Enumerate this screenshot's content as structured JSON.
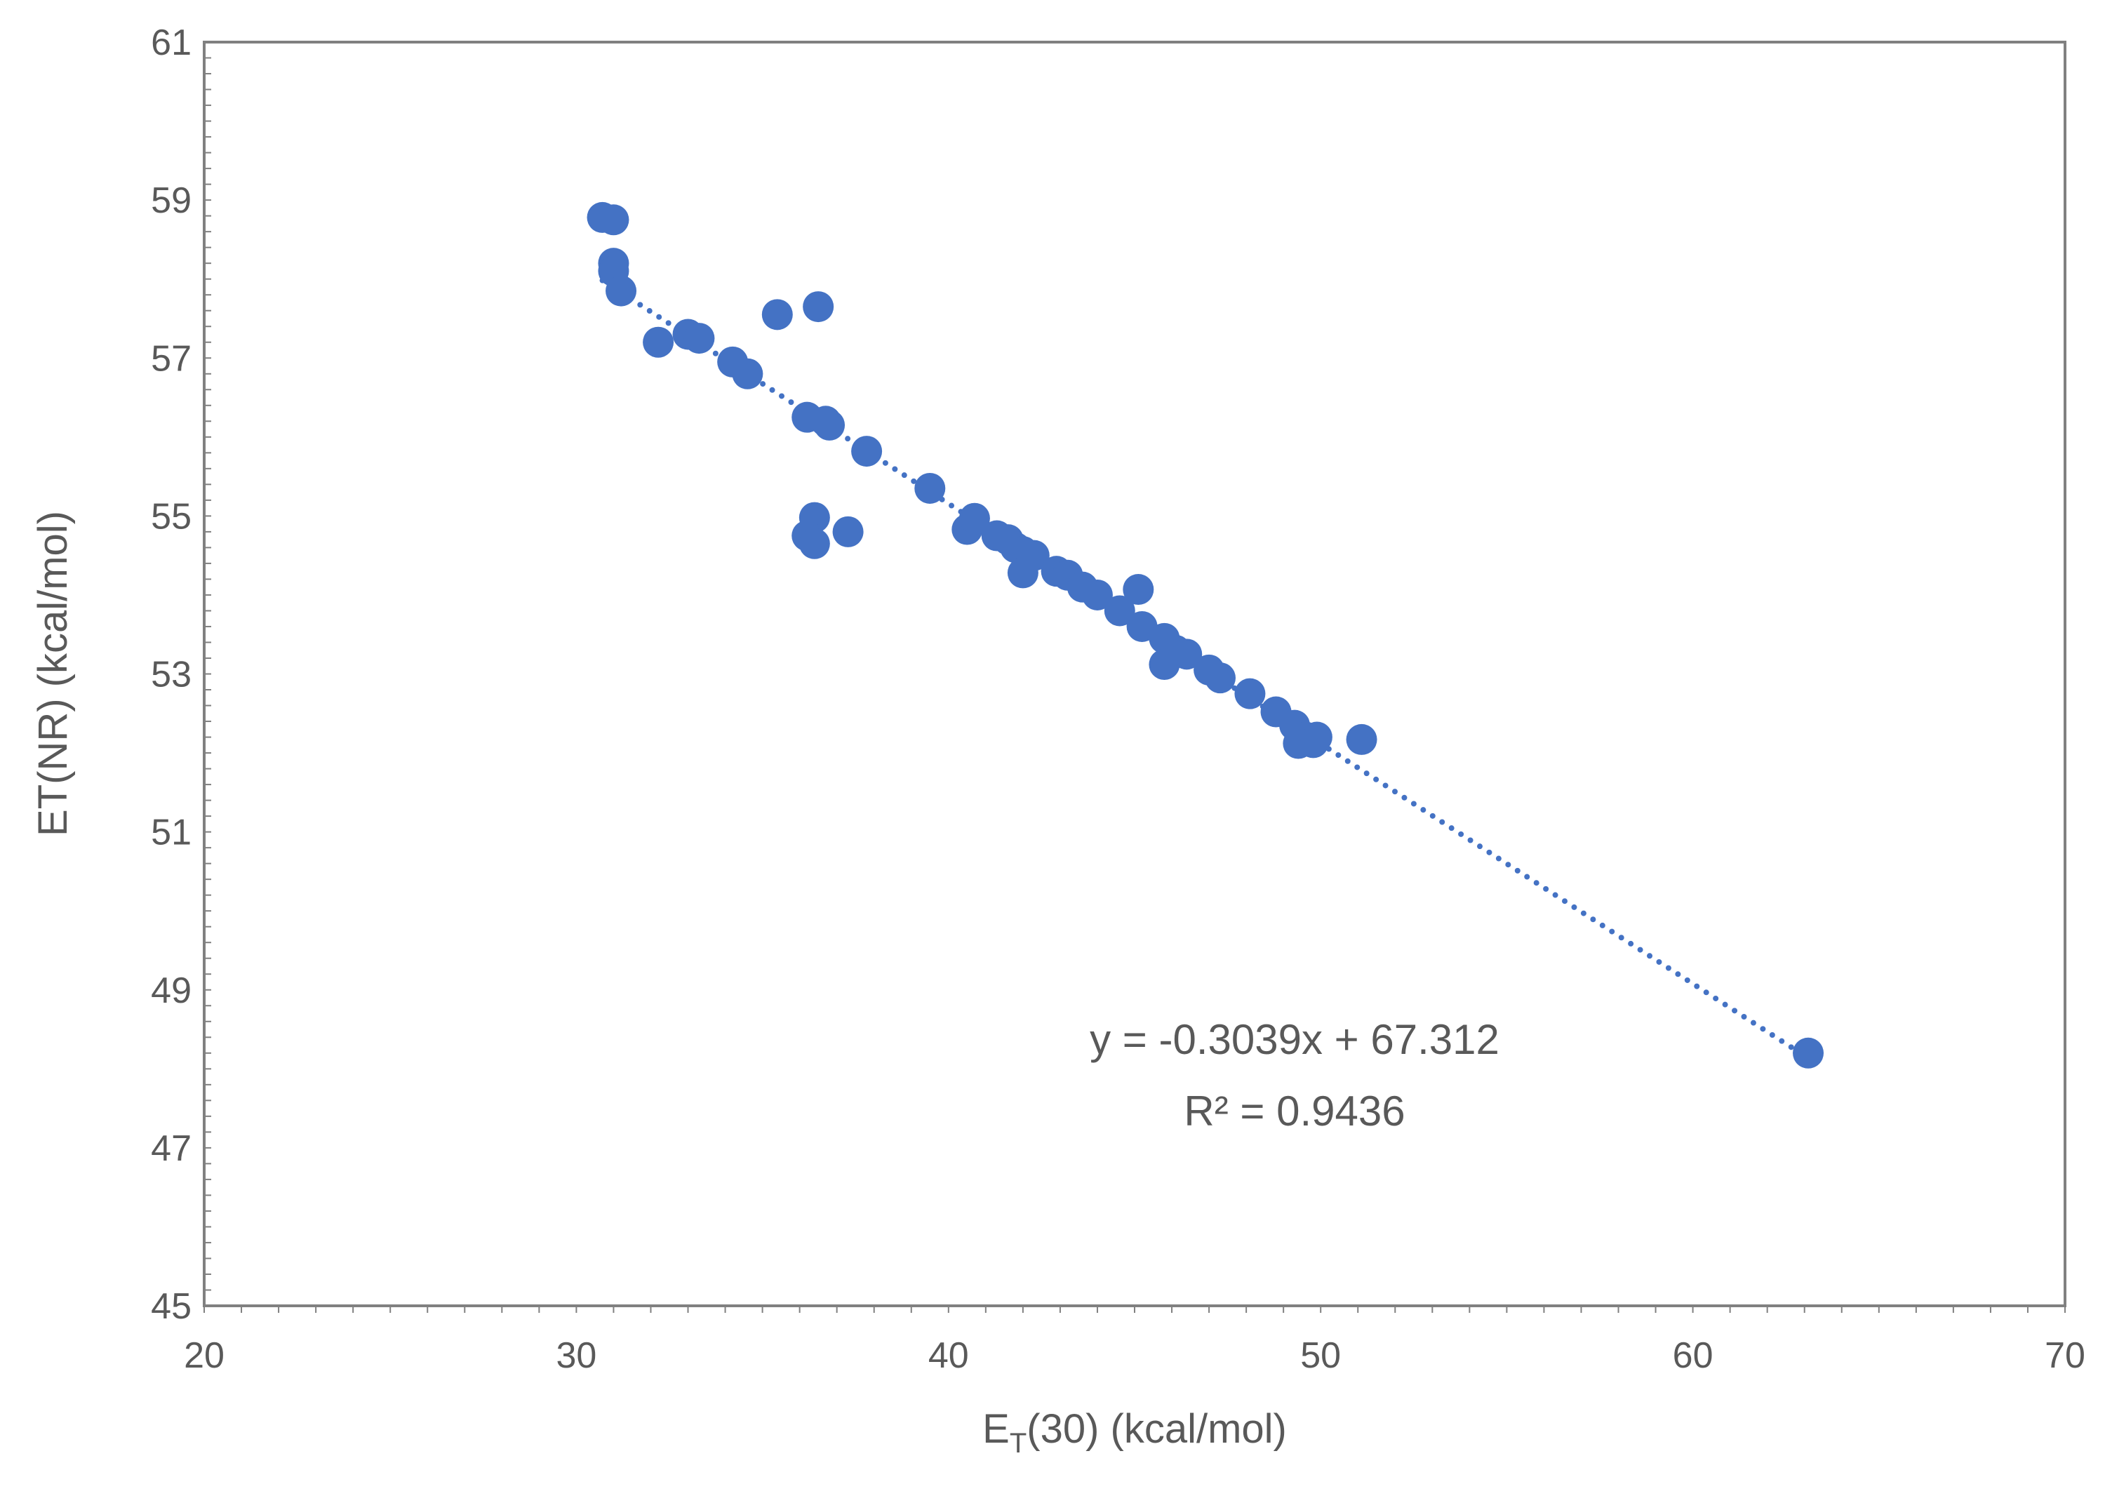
{
  "chart_data": {
    "type": "scatter",
    "title": "",
    "xlabel_main": "E",
    "xlabel_sub": "T",
    "xlabel_rest": "(30) (kcal/mol)",
    "ylabel": "ET(NR) (kcal/mol)",
    "xlim": [
      20,
      70
    ],
    "ylim": [
      45,
      61
    ],
    "x_ticks": [
      20,
      30,
      40,
      50,
      60,
      70
    ],
    "x_tick_labels": [
      "20",
      "30",
      "40",
      "50",
      "60",
      "70"
    ],
    "y_ticks": [
      45,
      47,
      49,
      51,
      53,
      55,
      57,
      59,
      61
    ],
    "y_tick_labels": [
      "45",
      "47",
      "49",
      "51",
      "53",
      "55",
      "57",
      "59",
      "61"
    ],
    "grid": false,
    "marker_color": "#4472C4",
    "axis_color": "#808080",
    "text_color": "#595959",
    "series": [
      {
        "name": "data",
        "points": [
          [
            30.7,
            58.78
          ],
          [
            31.0,
            58.75
          ],
          [
            31.0,
            58.2
          ],
          [
            31.0,
            58.1
          ],
          [
            31.2,
            57.85
          ],
          [
            32.2,
            57.2
          ],
          [
            33.0,
            57.3
          ],
          [
            33.3,
            57.25
          ],
          [
            34.2,
            56.95
          ],
          [
            34.6,
            56.8
          ],
          [
            35.4,
            57.55
          ],
          [
            36.5,
            57.65
          ],
          [
            36.2,
            56.25
          ],
          [
            36.7,
            56.2
          ],
          [
            36.8,
            56.15
          ],
          [
            37.8,
            55.82
          ],
          [
            39.5,
            55.35
          ],
          [
            36.4,
            54.98
          ],
          [
            36.2,
            54.75
          ],
          [
            36.4,
            54.65
          ],
          [
            37.3,
            54.8
          ],
          [
            40.5,
            54.83
          ],
          [
            40.7,
            54.97
          ],
          [
            41.3,
            54.75
          ],
          [
            41.6,
            54.7
          ],
          [
            41.8,
            54.6
          ],
          [
            42.0,
            54.55
          ],
          [
            42.3,
            54.5
          ],
          [
            42.0,
            54.28
          ],
          [
            42.9,
            54.3
          ],
          [
            43.2,
            54.25
          ],
          [
            43.6,
            54.1
          ],
          [
            44.0,
            54.0
          ],
          [
            45.1,
            54.07
          ],
          [
            44.6,
            53.8
          ],
          [
            45.2,
            53.6
          ],
          [
            45.8,
            53.45
          ],
          [
            46.1,
            53.3
          ],
          [
            46.4,
            53.25
          ],
          [
            45.8,
            53.12
          ],
          [
            47.0,
            53.05
          ],
          [
            47.3,
            52.95
          ],
          [
            48.1,
            52.75
          ],
          [
            48.8,
            52.52
          ],
          [
            49.3,
            52.35
          ],
          [
            49.6,
            52.2
          ],
          [
            49.9,
            52.2
          ],
          [
            49.4,
            52.12
          ],
          [
            49.8,
            52.13
          ],
          [
            51.1,
            52.17
          ],
          [
            63.1,
            48.2
          ]
        ]
      }
    ],
    "trendline": {
      "type": "linear",
      "style": "dotted",
      "slope": -0.3039,
      "intercept": 67.312,
      "x_start": 30.7,
      "x_end": 63.1,
      "equation_label": "y = -0.3039x + 67.312",
      "r2_label": "R² = 0.9436"
    }
  }
}
